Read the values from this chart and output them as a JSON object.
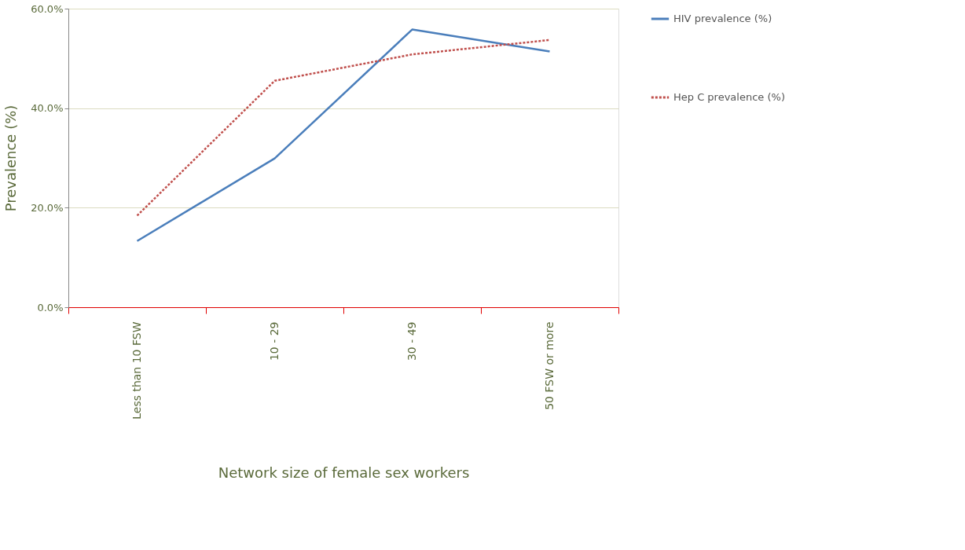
{
  "chart_data": {
    "type": "line",
    "xlabel": "Network size of female sex workers",
    "ylabel": "Prevalence (%)",
    "categories": [
      "Less than 10 FSW",
      "10 - 29",
      "30 - 49",
      "50 FSW or more"
    ],
    "series": [
      {
        "name": "HIV prevalence (%)",
        "color": "#4a7ebb",
        "line_style": "solid",
        "values": [
          13.3,
          29.9,
          55.8,
          51.4
        ]
      },
      {
        "name": "Hep C prevalence (%)",
        "color": "#c0504d",
        "line_style": "dotted",
        "values": [
          18.4,
          45.5,
          50.8,
          53.7
        ]
      }
    ],
    "ylim": [
      0,
      60
    ],
    "yticks": [
      {
        "value": 0,
        "label": "0.0%"
      },
      {
        "value": 20,
        "label": "20.0%"
      },
      {
        "value": 40,
        "label": "40.0%"
      },
      {
        "value": 60,
        "label": "60.0%"
      }
    ],
    "grid": "y",
    "legend": "right",
    "marker": "none"
  }
}
